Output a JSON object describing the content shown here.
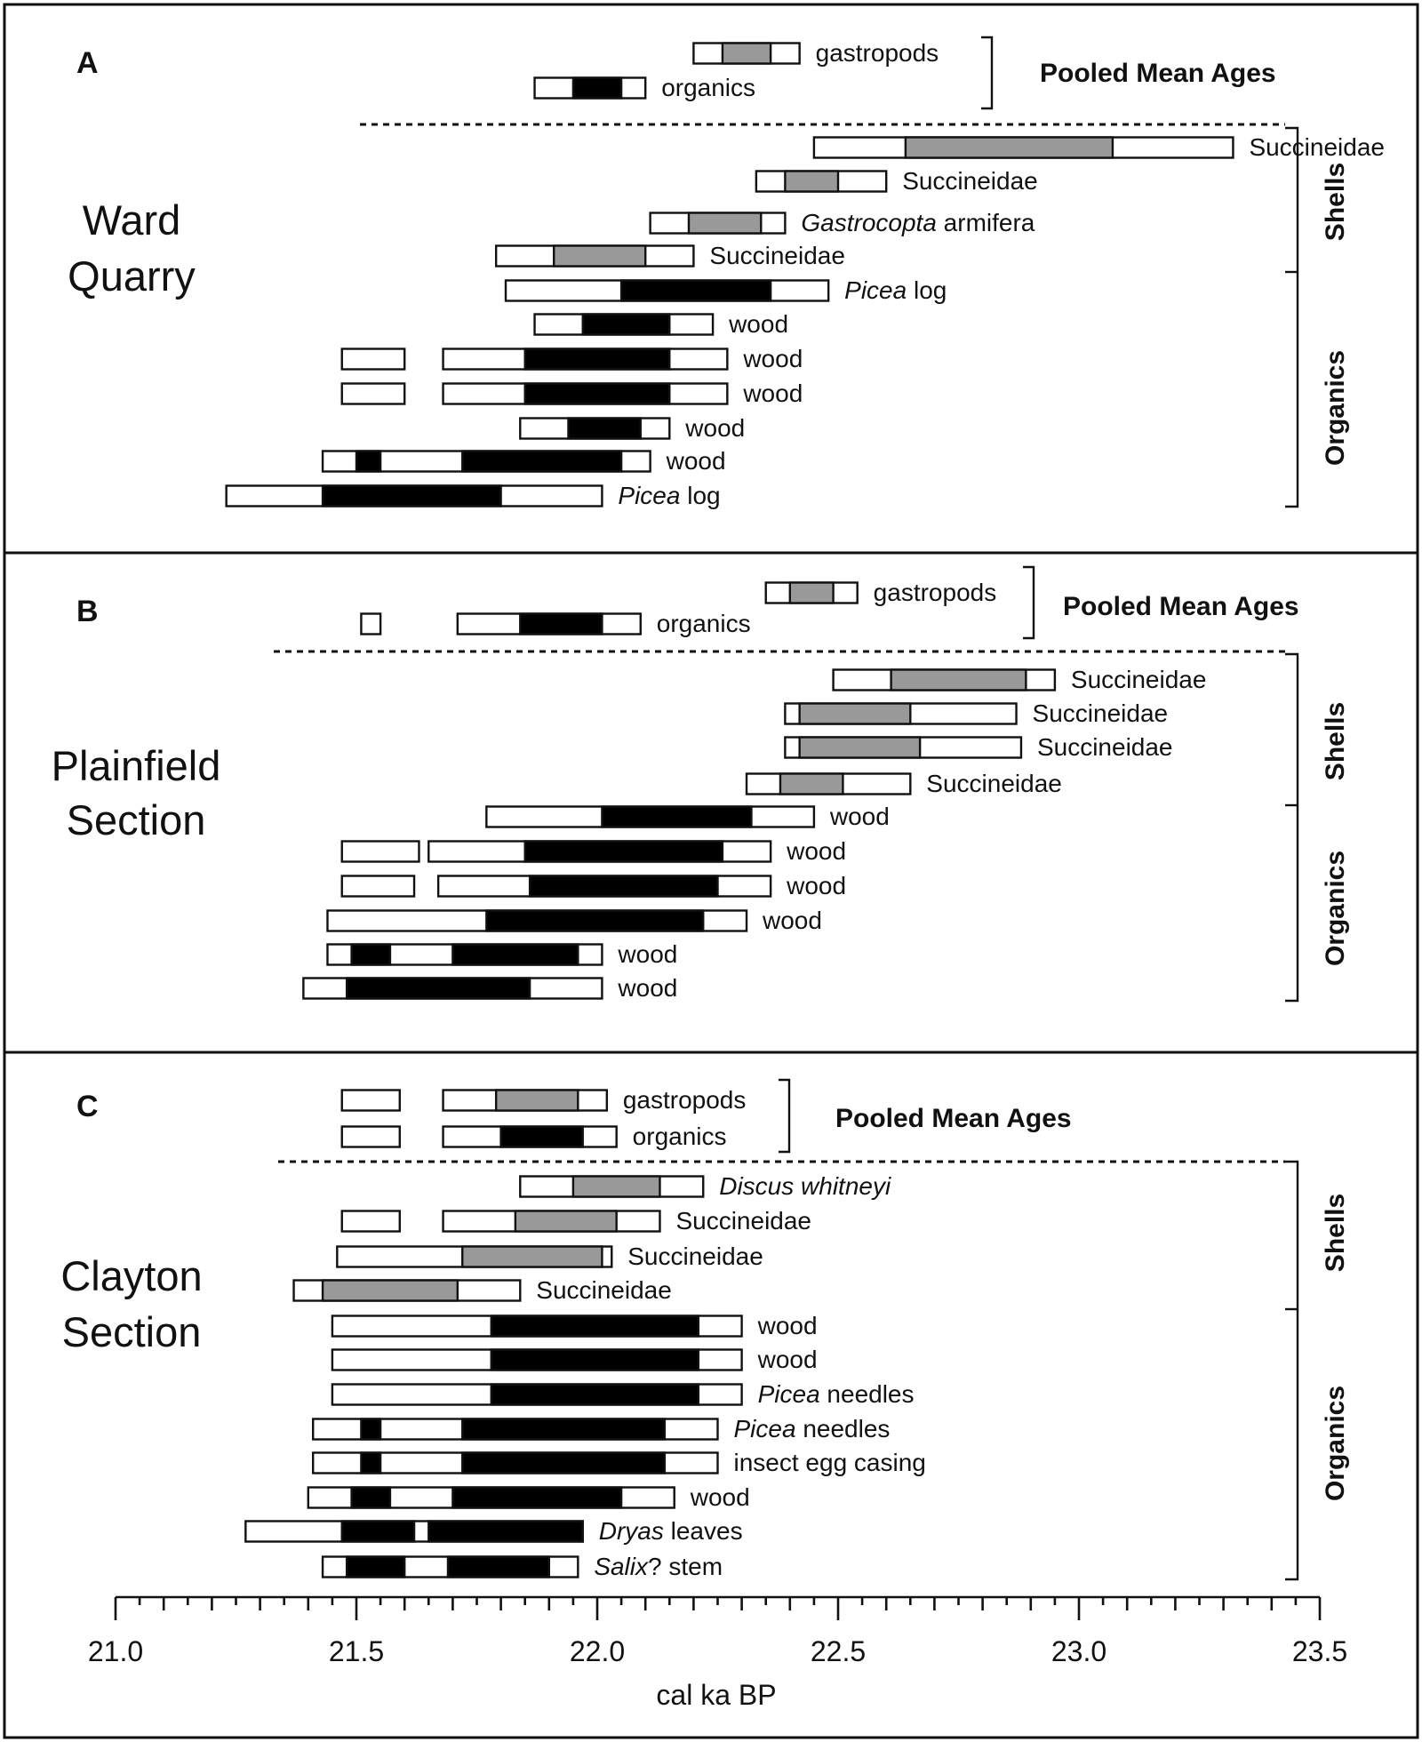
{
  "chart_data": {
    "type": "range-bar",
    "xlabel": "cal ka BP",
    "xlim": [
      21.0,
      23.5
    ],
    "x_ticks": [
      "21.0",
      "21.5",
      "22.0",
      "22.5",
      "23.0",
      "23.5"
    ],
    "colors": {
      "shell": "#999999",
      "organic": "#000000",
      "outline": "#ffffff"
    },
    "panels": [
      {
        "letter": "A",
        "site": [
          "Ward",
          "Quarry"
        ],
        "pooled_title": "Pooled Mean Ages",
        "group_labels": [
          "Shells",
          "Organics"
        ],
        "pooled": [
          {
            "label": "gastropods",
            "type": "shell",
            "ranges": [
              [
                22.2,
                22.42
              ]
            ],
            "core": [
              22.26,
              22.36
            ]
          },
          {
            "label": "organics",
            "type": "organic",
            "ranges": [
              [
                21.87,
                22.1
              ]
            ],
            "core": [
              21.95,
              22.05
            ]
          }
        ],
        "samples": [
          {
            "label": "Succineidae",
            "italic": "",
            "type": "shell",
            "ranges": [
              [
                22.45,
                23.32
              ]
            ],
            "core": [
              22.64,
              23.07
            ]
          },
          {
            "label": "Succineidae",
            "italic": "",
            "type": "shell",
            "ranges": [
              [
                22.33,
                22.6
              ]
            ],
            "core": [
              22.39,
              22.5
            ]
          },
          {
            "label": " armifera",
            "italic": "Gastrocopta",
            "type": "shell",
            "ranges": [
              [
                22.11,
                22.39
              ]
            ],
            "core": [
              22.19,
              22.34
            ]
          },
          {
            "label": "Succineidae",
            "italic": "",
            "type": "shell",
            "ranges": [
              [
                21.79,
                22.2
              ]
            ],
            "core": [
              21.91,
              22.1
            ]
          },
          {
            "label": " log",
            "italic": "Picea",
            "type": "organic",
            "ranges": [
              [
                21.81,
                22.48
              ]
            ],
            "core": [
              22.05,
              22.36
            ]
          },
          {
            "label": "wood",
            "italic": "",
            "type": "organic",
            "ranges": [
              [
                21.87,
                22.24
              ]
            ],
            "core": [
              21.97,
              22.15
            ]
          },
          {
            "label": "wood",
            "italic": "",
            "type": "organic",
            "ranges": [
              [
                21.47,
                21.6
              ],
              [
                21.68,
                22.27
              ]
            ],
            "core": [
              21.85,
              22.15
            ]
          },
          {
            "label": "wood",
            "italic": "",
            "type": "organic",
            "ranges": [
              [
                21.47,
                21.6
              ],
              [
                21.68,
                22.27
              ]
            ],
            "core": [
              21.85,
              22.15
            ]
          },
          {
            "label": "wood",
            "italic": "",
            "type": "organic",
            "ranges": [
              [
                21.84,
                22.15
              ]
            ],
            "core": [
              21.94,
              22.09
            ]
          },
          {
            "label": "wood",
            "italic": "",
            "type": "organic",
            "ranges": [
              [
                21.43,
                22.11
              ]
            ],
            "core": [
              21.72,
              22.05
            ],
            "extra_cores": [
              [
                21.5,
                21.55
              ]
            ]
          },
          {
            "label": " log",
            "italic": "Picea",
            "type": "organic",
            "ranges": [
              [
                21.23,
                22.01
              ]
            ],
            "core": [
              21.43,
              21.8
            ]
          }
        ]
      },
      {
        "letter": "B",
        "site": [
          "Plainfield",
          "Section"
        ],
        "pooled_title": "Pooled Mean Ages",
        "group_labels": [
          "Shells",
          "Organics"
        ],
        "pooled": [
          {
            "label": "gastropods",
            "type": "shell",
            "ranges": [
              [
                22.35,
                22.54
              ]
            ],
            "core": [
              22.4,
              22.49
            ]
          },
          {
            "label": "organics",
            "type": "organic",
            "ranges": [
              [
                21.51,
                21.55
              ],
              [
                21.71,
                22.09
              ]
            ],
            "core": [
              21.84,
              22.01
            ]
          }
        ],
        "samples": [
          {
            "label": "Succineidae",
            "italic": "",
            "type": "shell",
            "ranges": [
              [
                22.49,
                22.95
              ]
            ],
            "core": [
              22.61,
              22.89
            ]
          },
          {
            "label": "Succineidae",
            "italic": "",
            "type": "shell",
            "ranges": [
              [
                22.39,
                22.87
              ]
            ],
            "core": [
              22.42,
              22.65
            ]
          },
          {
            "label": "Succineidae",
            "italic": "",
            "type": "shell",
            "ranges": [
              [
                22.39,
                22.88
              ]
            ],
            "core": [
              22.42,
              22.67
            ]
          },
          {
            "label": "Succineidae",
            "italic": "",
            "type": "shell",
            "ranges": [
              [
                22.31,
                22.65
              ]
            ],
            "core": [
              22.38,
              22.51
            ]
          },
          {
            "label": "wood",
            "italic": "",
            "type": "organic",
            "ranges": [
              [
                21.77,
                22.45
              ]
            ],
            "core": [
              22.01,
              22.32
            ]
          },
          {
            "label": "wood",
            "italic": "",
            "type": "organic",
            "ranges": [
              [
                21.47,
                21.63
              ],
              [
                21.65,
                22.36
              ]
            ],
            "core": [
              21.85,
              22.26
            ]
          },
          {
            "label": "wood",
            "italic": "",
            "type": "organic",
            "ranges": [
              [
                21.47,
                21.62
              ],
              [
                21.67,
                22.36
              ]
            ],
            "core": [
              21.86,
              22.25
            ]
          },
          {
            "label": "wood",
            "italic": "",
            "type": "organic",
            "ranges": [
              [
                21.44,
                22.31
              ]
            ],
            "core": [
              21.77,
              22.22
            ]
          },
          {
            "label": "wood",
            "italic": "",
            "type": "organic",
            "ranges": [
              [
                21.44,
                22.01
              ]
            ],
            "core": [
              21.7,
              21.96
            ],
            "extra_cores": [
              [
                21.49,
                21.57
              ]
            ]
          },
          {
            "label": "wood",
            "italic": "",
            "type": "organic",
            "ranges": [
              [
                21.39,
                22.01
              ]
            ],
            "core": [
              21.48,
              21.86
            ]
          }
        ]
      },
      {
        "letter": "C",
        "site": [
          "Clayton",
          "Section"
        ],
        "pooled_title": "Pooled Mean Ages",
        "group_labels": [
          "Shells",
          "Organics"
        ],
        "pooled": [
          {
            "label": "gastropods",
            "type": "shell",
            "ranges": [
              [
                21.47,
                21.59
              ],
              [
                21.68,
                22.02
              ]
            ],
            "core": [
              21.79,
              21.96
            ]
          },
          {
            "label": "organics",
            "type": "organic",
            "ranges": [
              [
                21.47,
                21.59
              ],
              [
                21.68,
                22.04
              ]
            ],
            "core": [
              21.8,
              21.97
            ]
          }
        ],
        "samples": [
          {
            "label": "",
            "italic": "Discus whitneyi",
            "type": "shell",
            "ranges": [
              [
                21.84,
                22.22
              ]
            ],
            "core": [
              21.95,
              22.13
            ]
          },
          {
            "label": "Succineidae",
            "italic": "",
            "type": "shell",
            "ranges": [
              [
                21.47,
                21.59
              ],
              [
                21.68,
                22.13
              ]
            ],
            "core": [
              21.83,
              22.04
            ]
          },
          {
            "label": "Succineidae",
            "italic": "",
            "type": "shell",
            "ranges": [
              [
                21.46,
                22.03
              ]
            ],
            "core": [
              21.72,
              22.01
            ]
          },
          {
            "label": "Succineidae",
            "italic": "",
            "type": "shell",
            "ranges": [
              [
                21.37,
                21.84
              ]
            ],
            "core": [
              21.43,
              21.71
            ]
          },
          {
            "label": "wood",
            "italic": "",
            "type": "organic",
            "ranges": [
              [
                21.45,
                22.3
              ]
            ],
            "core": [
              21.78,
              22.21
            ]
          },
          {
            "label": "wood",
            "italic": "",
            "type": "organic",
            "ranges": [
              [
                21.45,
                22.3
              ]
            ],
            "core": [
              21.78,
              22.21
            ]
          },
          {
            "label": " needles",
            "italic": "Picea",
            "type": "organic",
            "ranges": [
              [
                21.45,
                22.3
              ]
            ],
            "core": [
              21.78,
              22.21
            ]
          },
          {
            "label": " needles",
            "italic": "Picea",
            "type": "organic",
            "ranges": [
              [
                21.41,
                22.25
              ]
            ],
            "core": [
              21.72,
              22.14
            ],
            "extra_cores": [
              [
                21.51,
                21.55
              ]
            ]
          },
          {
            "label": "insect egg casing",
            "italic": "",
            "type": "organic",
            "ranges": [
              [
                21.41,
                22.25
              ]
            ],
            "core": [
              21.72,
              22.14
            ],
            "extra_cores": [
              [
                21.51,
                21.55
              ]
            ]
          },
          {
            "label": "wood",
            "italic": "",
            "type": "organic",
            "ranges": [
              [
                21.4,
                22.16
              ]
            ],
            "core": [
              21.7,
              22.05
            ],
            "extra_cores": [
              [
                21.49,
                21.57
              ]
            ]
          },
          {
            "label": " leaves",
            "italic": "Dryas",
            "type": "organic",
            "ranges": [
              [
                21.27,
                21.97
              ]
            ],
            "core": [
              21.65,
              21.97
            ],
            "extra_cores": [
              [
                21.47,
                21.62
              ]
            ]
          },
          {
            "label": "? stem",
            "italic": "Salix",
            "type": "organic",
            "ranges": [
              [
                21.43,
                21.96
              ]
            ],
            "core": [
              21.69,
              21.9
            ],
            "extra_cores": [
              [
                21.48,
                21.6
              ]
            ]
          }
        ]
      }
    ]
  }
}
